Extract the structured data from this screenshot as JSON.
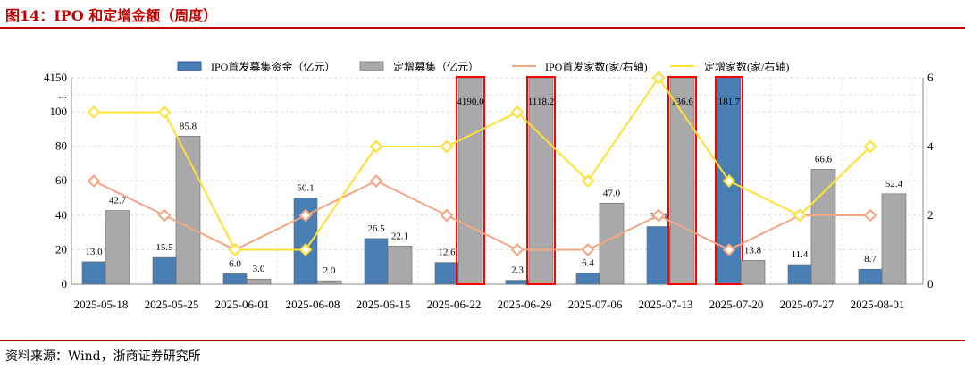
{
  "header": {
    "title": "图14：IPO 和定增金额（周度）"
  },
  "footer": {
    "source": "资料来源：Wind，浙商证券研究所"
  },
  "colors": {
    "ipo_bar": "#4a7fb5",
    "sp_bar": "#a9a9a9",
    "ipo_line": "#f4a582",
    "sp_line": "#ffe033",
    "highlight": "#ff0000",
    "brand": "#c00000"
  },
  "chart_data": {
    "type": "bar+line",
    "categories": [
      "2025-05-18",
      "2025-05-25",
      "2025-06-01",
      "2025-06-08",
      "2025-06-15",
      "2025-06-22",
      "2025-06-29",
      "2025-07-06",
      "2025-07-13",
      "2025-07-20",
      "2025-07-27",
      "2025-08-01"
    ],
    "series": [
      {
        "name": "IPO首发募集资金（亿元）",
        "type": "bar",
        "axis": "left",
        "values": [
          13.0,
          15.5,
          6.0,
          50.1,
          26.5,
          12.6,
          2.3,
          6.4,
          33.4,
          181.7,
          11.4,
          8.7
        ]
      },
      {
        "name": "定增募集（亿元）",
        "type": "bar",
        "axis": "left",
        "values": [
          42.7,
          85.8,
          3.0,
          2.0,
          22.1,
          4190.0,
          1118.2,
          47.0,
          136.6,
          13.8,
          66.6,
          52.4
        ]
      },
      {
        "name": "IPO首发家数(家/右轴)",
        "type": "line",
        "axis": "right",
        "values": [
          3,
          2,
          1,
          2,
          3,
          2,
          1,
          1,
          2,
          1,
          2,
          2
        ]
      },
      {
        "name": "定增家数(家/右轴)",
        "type": "line",
        "axis": "right",
        "values": [
          5,
          5,
          1,
          1,
          4,
          4,
          5,
          3,
          6,
          3,
          2,
          4
        ]
      }
    ],
    "left_axis": {
      "ticks": [
        "0",
        "20",
        "40",
        "60",
        "80",
        "100",
        "...",
        "4150"
      ],
      "break_label": "...",
      "broken_range": [
        100,
        4150
      ]
    },
    "right_axis": {
      "ticks": [
        "0",
        "2",
        "4",
        "6"
      ],
      "range": [
        0,
        6
      ]
    },
    "grid": true,
    "legend": "top"
  }
}
